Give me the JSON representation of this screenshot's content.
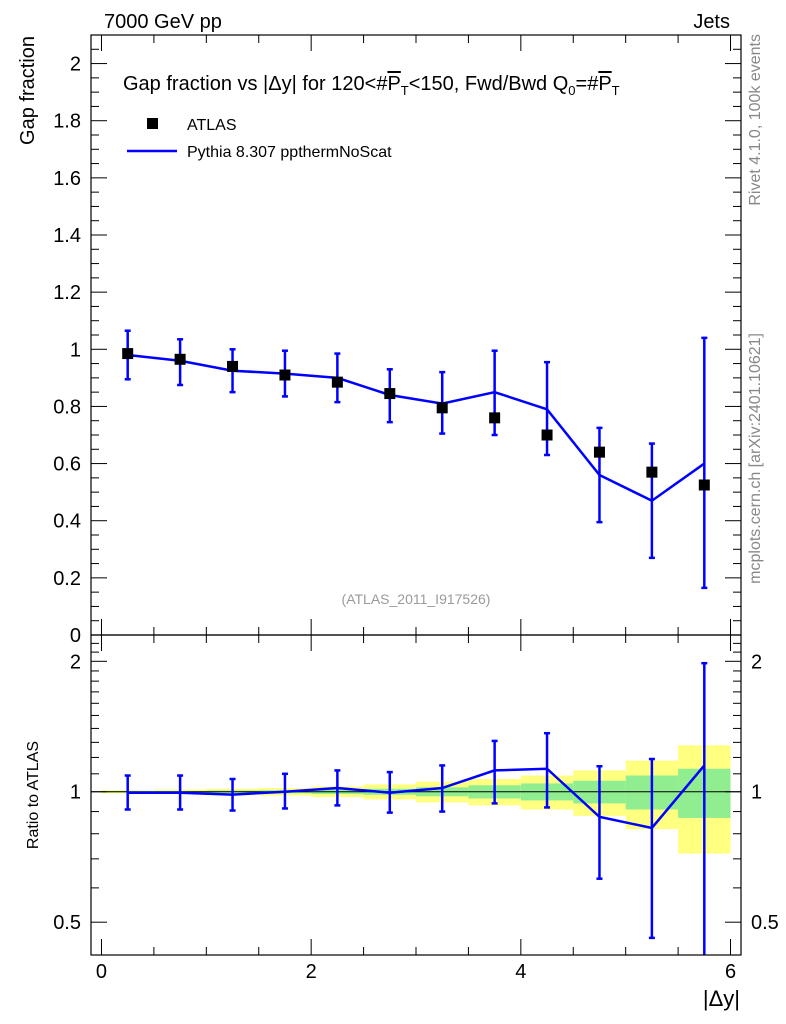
{
  "header": {
    "left": "7000 GeV pp",
    "right": "Jets"
  },
  "title": {
    "prefix": "Gap fraction vs |",
    "delta": "Δ",
    "mid": "y| for 120<#",
    "pt": "P",
    "pt_sub": "T",
    "mid2": "<150, Fwd/Bwd Q",
    "q_sub": "0",
    "eq": "=#",
    "pt2": "P",
    "pt2_sub": "T"
  },
  "side_labels": {
    "rivet": "Rivet 4.1.0,  100k events",
    "mcplots": "mcplots.cern.ch [arXiv:2401.10621]"
  },
  "watermark": "(ATLAS_2011_I917526)",
  "legend": {
    "data_label": "ATLAS",
    "mc_label": "Pythia 8.307 ppthermNoScat"
  },
  "colors": {
    "mc": "#0000ff",
    "data": "#000000",
    "band_inner": "#90ee90",
    "band_outer": "#ffff80"
  },
  "chart_data": [
    {
      "type": "scatter",
      "panel": "main",
      "ylabel": "Gap fraction",
      "xlim": [
        -0.1,
        6.1
      ],
      "ylim": [
        0,
        2.1
      ],
      "xticks": [
        0,
        2,
        4,
        6
      ],
      "yticks": [
        0,
        0.2,
        0.4,
        0.6,
        0.8,
        1,
        1.2,
        1.4,
        1.6,
        1.8,
        2
      ],
      "ytick_labels": [
        "0",
        "0.2",
        "0.4",
        "0.6",
        "0.8",
        "1",
        "1.2",
        "1.4",
        "1.6",
        "1.8",
        "2"
      ],
      "bin_edges": [
        0,
        0.5,
        1,
        1.5,
        2,
        2.5,
        3,
        3.5,
        4,
        4.5,
        5,
        5.5,
        6
      ],
      "series": [
        {
          "name": "ATLAS",
          "x": [
            0.25,
            0.75,
            1.25,
            1.75,
            2.25,
            2.75,
            3.25,
            3.75,
            4.25,
            4.75,
            5.25,
            5.75
          ],
          "y": [
            0.985,
            0.965,
            0.94,
            0.91,
            0.885,
            0.845,
            0.795,
            0.76,
            0.7,
            0.64,
            0.57,
            0.525
          ]
        },
        {
          "name": "Pythia 8.307 ppthermNoScat",
          "x": [
            0.25,
            0.75,
            1.25,
            1.75,
            2.25,
            2.75,
            3.25,
            3.75,
            4.25,
            4.75,
            5.25,
            5.75
          ],
          "y": [
            0.98,
            0.96,
            0.925,
            0.915,
            0.9,
            0.84,
            0.81,
            0.85,
            0.79,
            0.56,
            0.47,
            0.6
          ],
          "err_hi": [
            0.085,
            0.075,
            0.075,
            0.08,
            0.085,
            0.09,
            0.11,
            0.145,
            0.165,
            0.165,
            0.2,
            0.44
          ],
          "err_lo": [
            0.085,
            0.085,
            0.075,
            0.08,
            0.085,
            0.095,
            0.105,
            0.15,
            0.16,
            0.165,
            0.2,
            0.435
          ]
        }
      ]
    },
    {
      "type": "line",
      "panel": "ratio",
      "ylabel": "Ratio to ATLAS",
      "xlabel": "|Δy|",
      "xlim": [
        -0.1,
        6.1
      ],
      "ylim": [
        0.42,
        2.3
      ],
      "yscale": "log",
      "xticks": [
        0,
        2,
        4,
        6
      ],
      "yticks": [
        0.5,
        1,
        2
      ],
      "ytick_labels": [
        "0.5",
        "1",
        "2"
      ],
      "bin_edges": [
        0,
        0.5,
        1,
        1.5,
        2,
        2.5,
        3,
        3.5,
        4,
        4.5,
        5,
        5.5,
        6
      ],
      "band_inner": [
        0.004,
        0.004,
        0.006,
        0.008,
        0.012,
        0.016,
        0.024,
        0.035,
        0.045,
        0.06,
        0.09,
        0.13
      ],
      "band_outer": [
        0.008,
        0.012,
        0.016,
        0.02,
        0.028,
        0.04,
        0.055,
        0.07,
        0.09,
        0.12,
        0.18,
        0.28
      ],
      "series": [
        {
          "name": "Pythia 8.307 ppthermNoScat",
          "x": [
            0.25,
            0.75,
            1.25,
            1.75,
            2.25,
            2.75,
            3.25,
            3.75,
            4.25,
            4.75,
            5.25,
            5.75
          ],
          "y": [
            0.995,
            0.995,
            0.985,
            1.0,
            1.02,
            0.995,
            1.02,
            1.12,
            1.13,
            0.875,
            0.825,
            1.15
          ],
          "err_hi": [
            0.095,
            0.095,
            0.085,
            0.1,
            0.1,
            0.115,
            0.13,
            0.19,
            0.235,
            0.27,
            0.365,
            0.83
          ],
          "err_lo": [
            0.085,
            0.085,
            0.08,
            0.085,
            0.09,
            0.1,
            0.12,
            0.18,
            0.21,
            0.245,
            0.365,
            0.75
          ]
        }
      ]
    }
  ]
}
